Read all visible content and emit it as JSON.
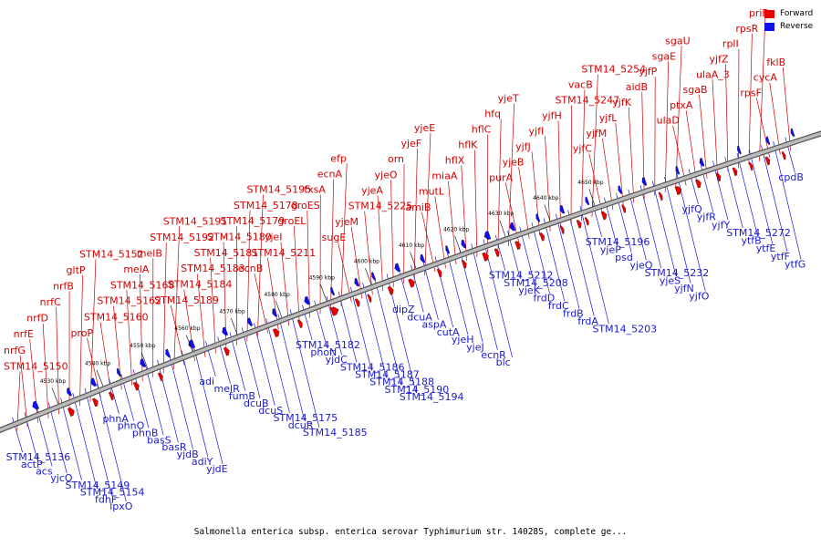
{
  "colors": {
    "forward": "#ee0000",
    "reverse": "#1010ee",
    "line": "#cc0000",
    "line_rev": "#1515dd",
    "backbone": "#888888"
  },
  "legend": {
    "forward": "Forward",
    "reverse": "Reverse"
  },
  "caption": "Salmonella enterica subsp. enterica serovar Typhimurium str. 14028S, complete ge...",
  "ticks": [
    "4530 kbp",
    "4540 kbp",
    "4550 kbp",
    "4560 kbp",
    "4570 kbp",
    "4580 kbp",
    "4590 kbp",
    "4600 kbp",
    "4610 kbp",
    "4620 kbp",
    "4630 kbp",
    "4640 kbp",
    "4650 kbp"
  ],
  "forward_labels": [
    "STM14_5150",
    "nrfG",
    "nrfE",
    "nrfD",
    "nrfC",
    "nrfB",
    "gltP",
    "STM14_5152",
    "proP",
    "STM14_5160",
    "STM14_5162",
    "STM14_5168",
    "melA",
    "melB",
    "STM14_5192",
    "STM14_5191",
    "STM14_5189",
    "STM14_5184",
    "STM14_5183",
    "STM14_5181",
    "STM14_5180",
    "STM14_5179",
    "STM14_5178",
    "STM14_5195",
    "ecnB",
    "STM14_5211",
    "yjeI",
    "groEL",
    "groES",
    "fxsA",
    "ecnA",
    "efp",
    "sugE",
    "yjeM",
    "STM14_5225",
    "yjeA",
    "yjeO",
    "orn",
    "yjeF",
    "yjeE",
    "amiB",
    "mutL",
    "miaA",
    "hflX",
    "hflK",
    "hflC",
    "hfq",
    "yjeT",
    "purA",
    "yjeB",
    "yjfJ",
    "yjfI",
    "yjfH",
    "STM14_5247",
    "vacB",
    "STM14_5254",
    "yjfC",
    "yjfM",
    "yjfL",
    "yjfK",
    "aidB",
    "yjfP",
    "sgaE",
    "sgaU",
    "ulaD",
    "ptxA",
    "sgaB",
    "ulaA_3",
    "yjfZ",
    "rplI",
    "rpsR",
    "priB",
    "rpsF",
    "cycA",
    "fklB"
  ],
  "reverse_labels": [
    "STM14_5136",
    "actP",
    "acs",
    "yjcO",
    "STM14_5149",
    "STM14_5154",
    "fdhF",
    "lpxO",
    "phnA",
    "phnO",
    "phnB",
    "basS",
    "basR",
    "yjdB",
    "adiY",
    "yjdE",
    "adi",
    "melR",
    "fumB",
    "dcuB",
    "dcuS",
    "STM14_5175",
    "dcuR",
    "STM14_5185",
    "STM14_5182",
    "phoN",
    "yjdC",
    "STM14_5186",
    "STM14_5187",
    "STM14_5188",
    "STM14_5190",
    "STM14_5194",
    "dipZ",
    "dcuA",
    "aspA",
    "cutA",
    "yjeH",
    "yjeJ",
    "ecnR",
    "blc",
    "STM14_5212",
    "STM14_5208",
    "yjeK",
    "frdD",
    "frdC",
    "frdB",
    "frdA",
    "STM14_5203",
    "STM14_5196",
    "yjeP",
    "psd",
    "yjeQ",
    "STM14_5232",
    "yjeS",
    "yjfN",
    "yjfO",
    "yjfQ",
    "yjfR",
    "yjfY",
    "STM14_5272",
    "ytfB",
    "ytfE",
    "ytfF",
    "ytfG",
    "cpdB"
  ]
}
